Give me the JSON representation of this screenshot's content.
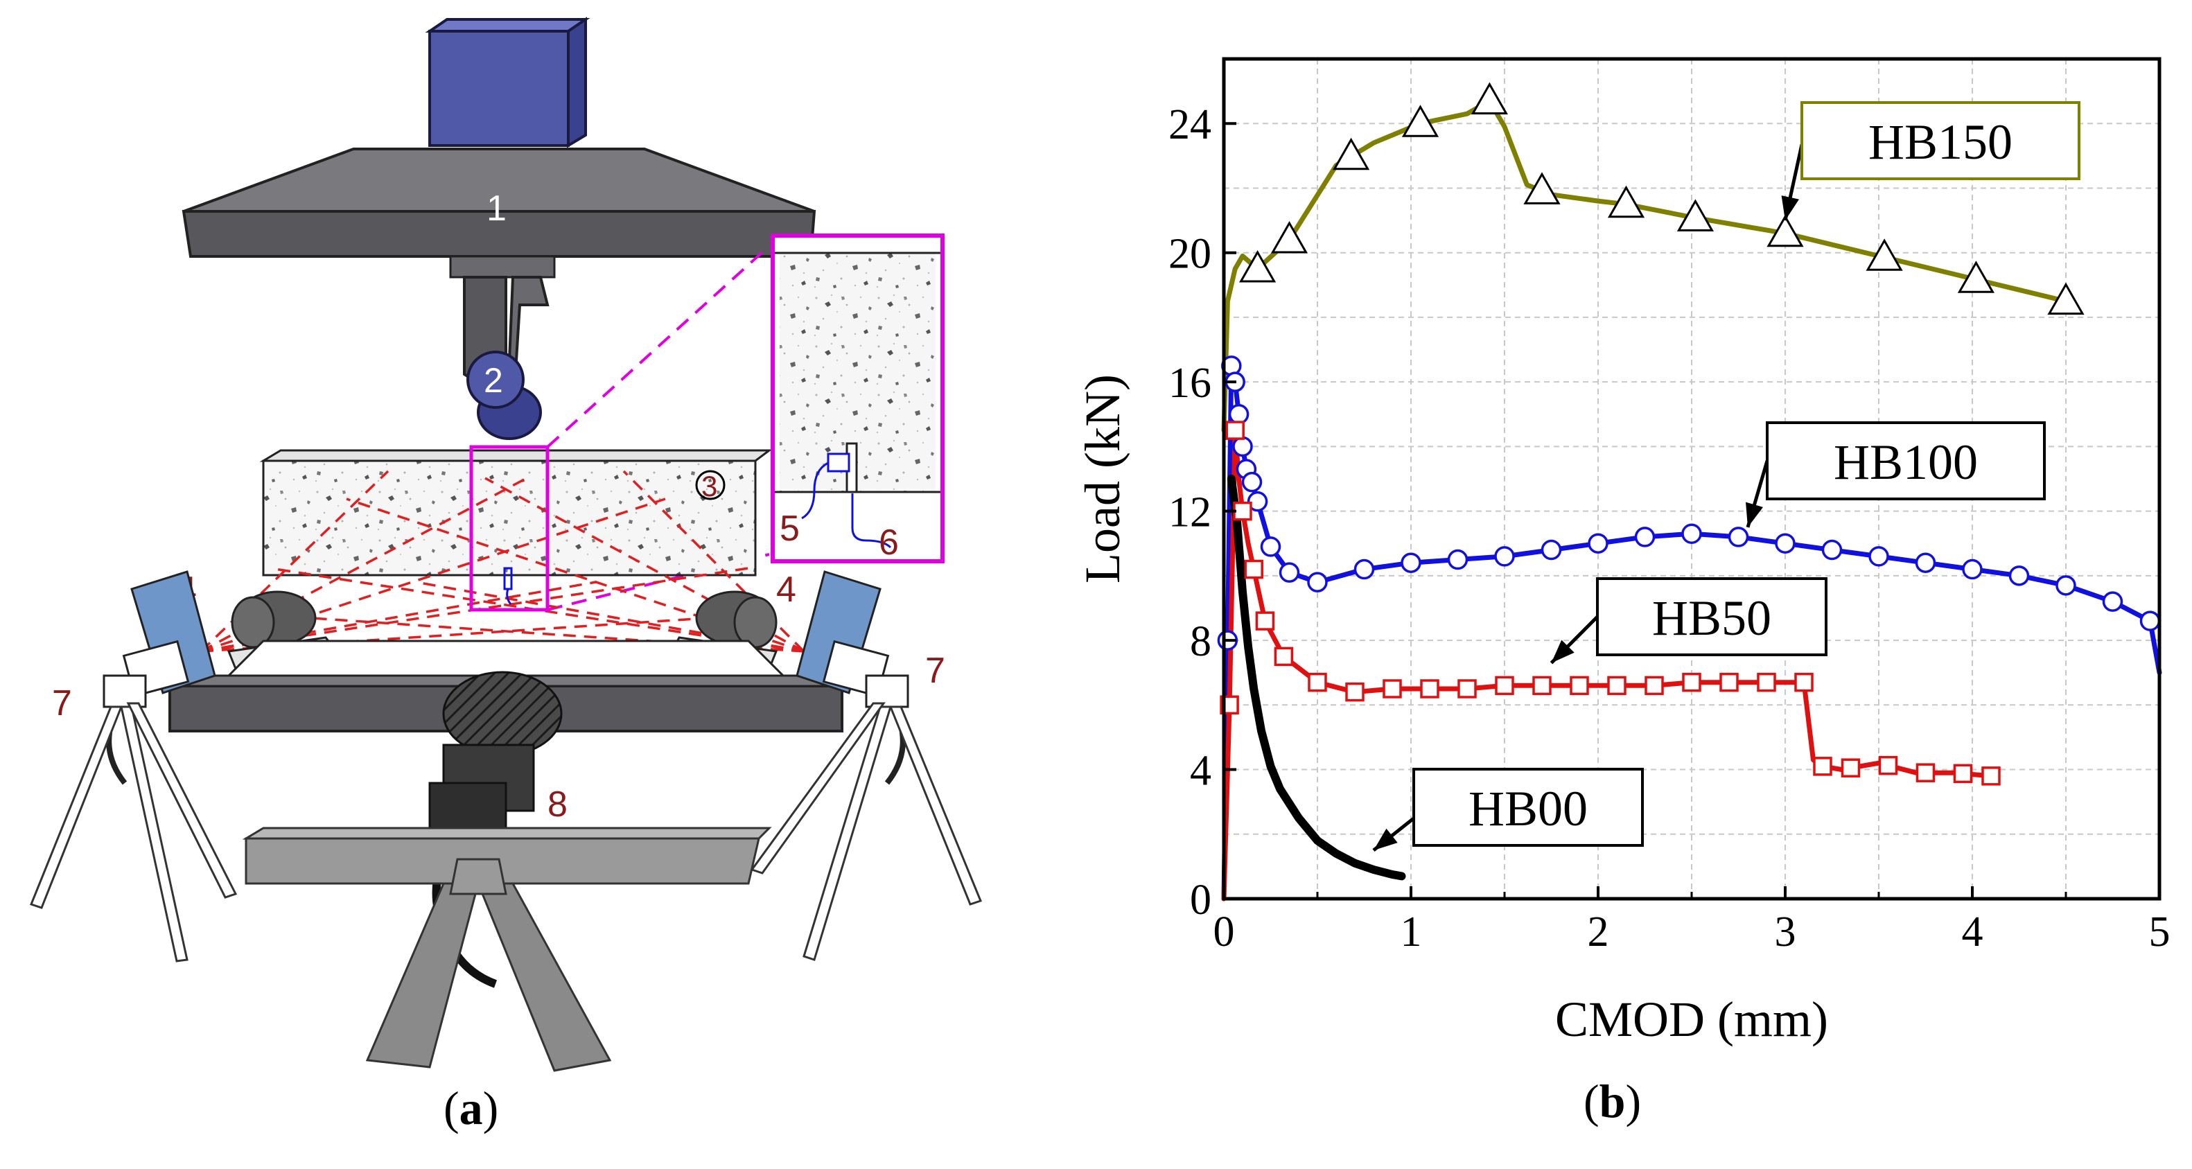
{
  "panel_a": {
    "caption_letter": "a",
    "callouts": {
      "c1": "1",
      "c2": "2",
      "c3": "3",
      "c4l": "4",
      "c4r": "4",
      "c5": "5",
      "c6": "6",
      "c7l": "7",
      "c7r": "7",
      "c8": "8"
    },
    "colors": {
      "actuator": "#5058a8",
      "machine": "#58585c",
      "inset": "#e000e0",
      "callout_text": "#8b1a1a",
      "camera_panel": "#6f96c8",
      "laser": "#e02020"
    }
  },
  "panel_b": {
    "caption_letter": "b"
  },
  "chart_data": {
    "type": "line",
    "xlabel": "CMOD (mm)",
    "ylabel": "Load (kN)",
    "xlim": [
      0,
      5
    ],
    "ylim": [
      0,
      26
    ],
    "xticks": [
      0,
      1,
      2,
      3,
      4,
      5
    ],
    "yticks": [
      0,
      4,
      8,
      12,
      16,
      20,
      24
    ],
    "grid": true,
    "series": [
      {
        "name": "HB150",
        "color": "#808000",
        "marker": "triangle",
        "x": [
          0,
          0.02,
          0.06,
          0.1,
          0.18,
          0.35,
          0.6,
          0.8,
          1.05,
          1.3,
          1.42,
          1.5,
          1.62,
          1.75,
          2.0,
          2.15,
          2.5,
          3.0,
          3.5,
          4.0,
          4.5
        ],
        "y": [
          14.5,
          18.5,
          19.5,
          19.9,
          19.5,
          20.4,
          22.7,
          23.4,
          24.0,
          24.3,
          24.7,
          23.9,
          22.1,
          21.8,
          21.6,
          21.5,
          21.1,
          20.6,
          19.9,
          19.2,
          18.5
        ],
        "marker_x": [
          0.18,
          0.35,
          0.68,
          1.05,
          1.42,
          1.7,
          2.15,
          2.52,
          3.0,
          3.53,
          4.02,
          4.5
        ]
      },
      {
        "name": "HB100",
        "color": "#1010e0",
        "marker": "circle",
        "x": [
          0,
          0.02,
          0.04,
          0.06,
          0.08,
          0.1,
          0.12,
          0.15,
          0.18,
          0.25,
          0.35,
          0.5,
          0.75,
          1.0,
          1.25,
          1.5,
          1.75,
          2.0,
          2.25,
          2.5,
          2.75,
          3.0,
          3.25,
          3.5,
          3.75,
          4.0,
          4.25,
          4.5,
          4.75,
          4.95,
          5.0
        ],
        "y": [
          0,
          8.0,
          16.5,
          16.0,
          15.0,
          14.0,
          13.3,
          12.9,
          12.3,
          10.9,
          10.1,
          9.8,
          10.2,
          10.4,
          10.5,
          10.6,
          10.8,
          11.0,
          11.2,
          11.3,
          11.2,
          11.0,
          10.8,
          10.6,
          10.4,
          10.2,
          10.0,
          9.7,
          9.2,
          8.6,
          7.0
        ],
        "marker_x": [
          0.02,
          0.04,
          0.06,
          0.08,
          0.1,
          0.12,
          0.15,
          0.18,
          0.25,
          0.35,
          0.5,
          0.75,
          1.0,
          1.25,
          1.5,
          1.75,
          2.0,
          2.25,
          2.5,
          2.75,
          3.0,
          3.25,
          3.5,
          3.75,
          4.0,
          4.25,
          4.5,
          4.75,
          4.95
        ]
      },
      {
        "name": "HB50",
        "color": "#e01010",
        "marker": "square",
        "x": [
          0,
          0.03,
          0.06,
          0.08,
          0.1,
          0.13,
          0.16,
          0.22,
          0.32,
          0.5,
          0.7,
          0.9,
          1.1,
          1.3,
          1.5,
          1.7,
          1.9,
          2.1,
          2.3,
          2.5,
          2.7,
          2.9,
          3.05,
          3.1,
          3.15,
          3.2,
          3.3,
          3.5,
          3.7,
          3.9,
          4.1
        ],
        "y": [
          0,
          6.0,
          14.5,
          13.0,
          12.0,
          11.0,
          10.2,
          8.6,
          7.5,
          6.7,
          6.4,
          6.5,
          6.5,
          6.5,
          6.6,
          6.6,
          6.6,
          6.6,
          6.6,
          6.7,
          6.7,
          6.7,
          6.7,
          6.7,
          4.3,
          4.1,
          4.0,
          4.2,
          3.9,
          3.9,
          3.8
        ],
        "marker_x": [
          0.03,
          0.06,
          0.1,
          0.16,
          0.22,
          0.32,
          0.5,
          0.7,
          0.9,
          1.1,
          1.3,
          1.5,
          1.7,
          1.9,
          2.1,
          2.3,
          2.5,
          2.7,
          2.9,
          3.1,
          3.2,
          3.35,
          3.55,
          3.75,
          3.95,
          4.1
        ]
      },
      {
        "name": "HB00",
        "color": "#000000",
        "marker": "none",
        "x": [
          0.04,
          0.07,
          0.1,
          0.13,
          0.16,
          0.2,
          0.25,
          0.3,
          0.4,
          0.5,
          0.6,
          0.7,
          0.8,
          0.9,
          0.95
        ],
        "y": [
          13.0,
          11.7,
          9.5,
          7.8,
          6.5,
          5.2,
          4.1,
          3.4,
          2.5,
          1.8,
          1.4,
          1.1,
          0.9,
          0.75,
          0.7
        ],
        "marker_x": []
      }
    ],
    "annotations": [
      {
        "text": "HB150",
        "x": 3.0,
        "y": 21.0,
        "series": "HB150"
      },
      {
        "text": "HB100",
        "x": 2.8,
        "y": 11.5,
        "series": "HB100"
      },
      {
        "text": "HB50",
        "x": 1.75,
        "y": 7.3,
        "series": "HB50"
      },
      {
        "text": "HB00",
        "x": 0.8,
        "y": 1.5,
        "series": "HB00"
      }
    ]
  }
}
